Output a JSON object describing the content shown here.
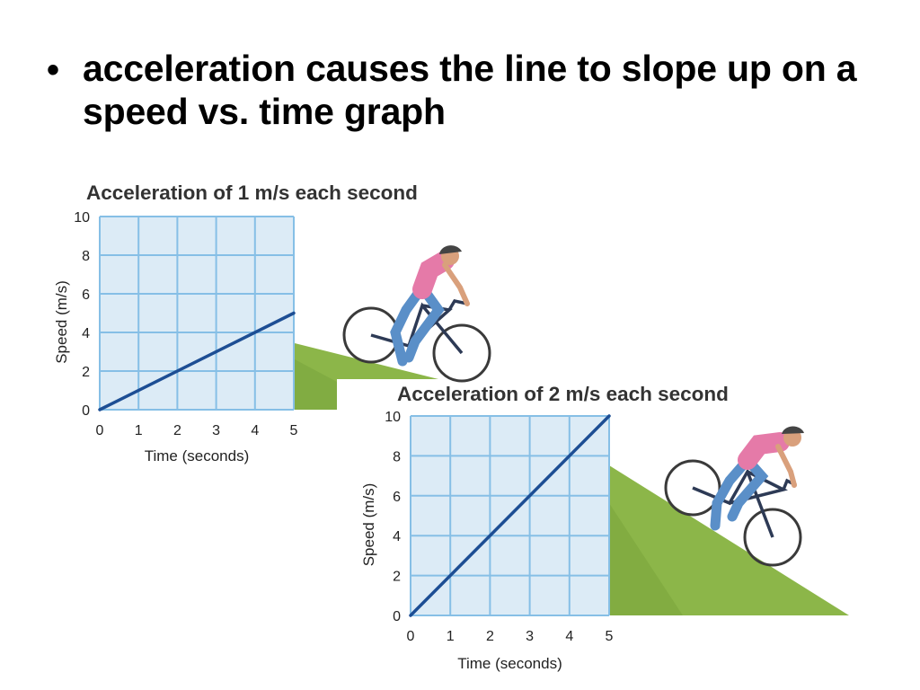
{
  "slide": {
    "bullet_symbol": "•",
    "bullet_text": "acceleration causes the line to slope up on a speed vs. time graph"
  },
  "colors": {
    "plot_background": "#dcebf6",
    "grid": "#86bfe6",
    "data_line": "#1d4e94",
    "hill": "#8cb649",
    "hill_shadow": "#6f9a34",
    "text": "#222222"
  },
  "images": [
    {
      "name": "cyclist-riding-downhill-1"
    },
    {
      "name": "cyclist-riding-downhill-2"
    }
  ],
  "chart_data": [
    {
      "type": "line",
      "title": "Acceleration of 1 m/s each second",
      "xlabel": "Time (seconds)",
      "ylabel": "Speed (m/s)",
      "xlim": [
        0,
        5
      ],
      "ylim": [
        0,
        10
      ],
      "grid": true,
      "x_ticks": [
        "0",
        "1",
        "2",
        "3",
        "4",
        "5"
      ],
      "y_ticks": [
        "0",
        "2",
        "4",
        "6",
        "8",
        "10"
      ],
      "series": [
        {
          "name": "speed",
          "x": [
            0,
            5
          ],
          "y": [
            0,
            5
          ]
        }
      ]
    },
    {
      "type": "line",
      "title": "Acceleration of 2 m/s each second",
      "xlabel": "Time (seconds)",
      "ylabel": "Speed (m/s)",
      "xlim": [
        0,
        5
      ],
      "ylim": [
        0,
        10
      ],
      "grid": true,
      "x_ticks": [
        "0",
        "1",
        "2",
        "3",
        "4",
        "5"
      ],
      "y_ticks": [
        "0",
        "2",
        "4",
        "6",
        "8",
        "10"
      ],
      "series": [
        {
          "name": "speed",
          "x": [
            0,
            5
          ],
          "y": [
            0,
            10
          ]
        }
      ]
    }
  ]
}
